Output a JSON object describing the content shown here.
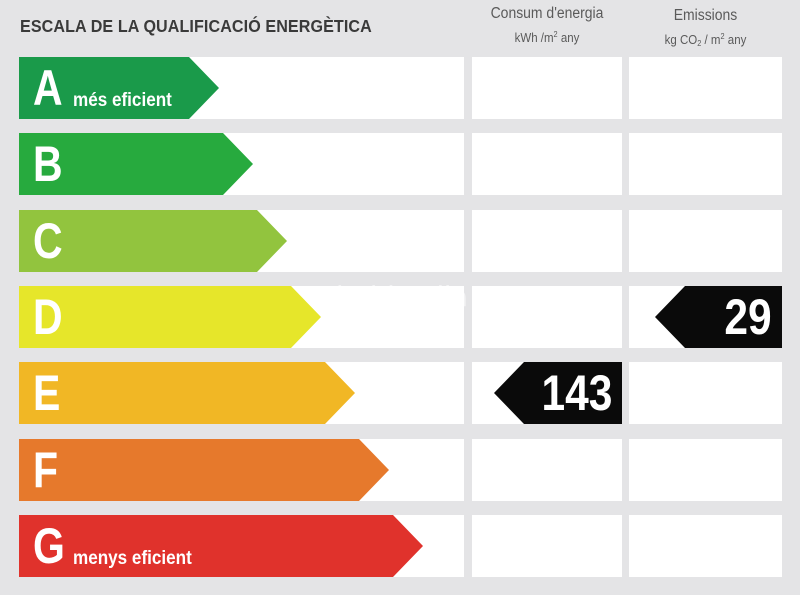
{
  "chart_data": {
    "type": "table",
    "title": "ESCALA DE LA QUALIFICACIÓ ENERGÈTICA",
    "columns": [
      {
        "name": "Consum d'energia",
        "unit_prefix": "kWh /m",
        "unit_sup": "2",
        "unit_suffix": " any"
      },
      {
        "name": "Emissions",
        "unit_prefix": "kg CO",
        "unit_sub": "2",
        "unit_mid": " / m",
        "unit_sup": "2",
        "unit_suffix": " any"
      }
    ],
    "classes": [
      {
        "letter": "A",
        "label": "més eficient",
        "color": "#1a9a4a"
      },
      {
        "letter": "B",
        "label": "",
        "color": "#27aa3e"
      },
      {
        "letter": "C",
        "label": "",
        "color": "#92c43e"
      },
      {
        "letter": "D",
        "label": "",
        "color": "#e6e62a"
      },
      {
        "letter": "E",
        "label": "",
        "color": "#f1b725"
      },
      {
        "letter": "F",
        "label": "",
        "color": "#e6792c"
      },
      {
        "letter": "G",
        "label": "menys eficient",
        "color": "#e0322c"
      }
    ],
    "ratings": {
      "energy": {
        "class": "E",
        "value": 143
      },
      "emissions": {
        "class": "D",
        "value": 29
      }
    }
  },
  "watermark": "habitaclia"
}
